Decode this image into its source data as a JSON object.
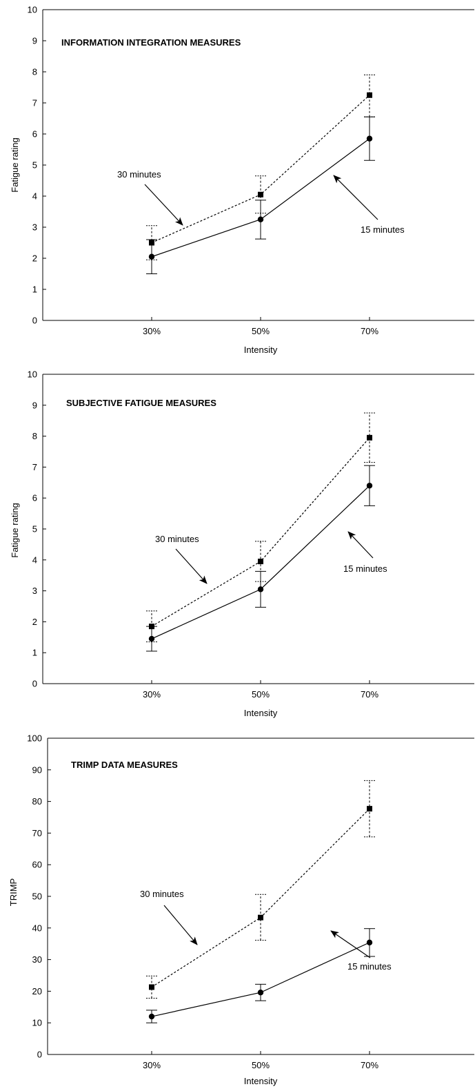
{
  "chart_data": [
    {
      "type": "line",
      "title": "INFORMATION INTEGRATION MEASURES",
      "xlabel": "Intensity",
      "ylabel": "Fatigue rating",
      "categories": [
        "30%",
        "50%",
        "70%"
      ],
      "ylim": [
        0,
        10
      ],
      "yticks": [
        0,
        1,
        2,
        3,
        4,
        5,
        6,
        7,
        8,
        9,
        10
      ],
      "series": [
        {
          "name": "30 minutes",
          "style": "dashed",
          "marker": "square",
          "values": [
            2.5,
            4.05,
            7.25
          ],
          "err_low": [
            1.95,
            3.45,
            6.55
          ],
          "err_high": [
            3.05,
            4.65,
            7.9
          ]
        },
        {
          "name": "15 minutes",
          "style": "solid",
          "marker": "circle",
          "values": [
            2.05,
            3.25,
            5.85
          ],
          "err_low": [
            1.5,
            2.62,
            5.15
          ],
          "err_high": [
            2.6,
            3.87,
            6.55
          ]
        }
      ],
      "annotations": [
        {
          "text": "30 minutes",
          "series": "30 minutes"
        },
        {
          "text": "15 minutes",
          "series": "15 minutes"
        }
      ]
    },
    {
      "type": "line",
      "title": "SUBJECTIVE FATIGUE MEASURES",
      "xlabel": "Intensity",
      "ylabel": "Fatigue rating",
      "categories": [
        "30%",
        "50%",
        "70%"
      ],
      "ylim": [
        0,
        10
      ],
      "yticks": [
        0,
        1,
        2,
        3,
        4,
        5,
        6,
        7,
        8,
        9,
        10
      ],
      "series": [
        {
          "name": "30 minutes",
          "style": "dashed",
          "marker": "square",
          "values": [
            1.85,
            3.95,
            7.95
          ],
          "err_low": [
            1.35,
            3.3,
            7.15
          ],
          "err_high": [
            2.35,
            4.6,
            8.75
          ]
        },
        {
          "name": "15 minutes",
          "style": "solid",
          "marker": "circle",
          "values": [
            1.45,
            3.05,
            6.4
          ],
          "err_low": [
            1.05,
            2.47,
            5.75
          ],
          "err_high": [
            1.85,
            3.63,
            7.05
          ]
        }
      ],
      "annotations": [
        {
          "text": "30 minutes",
          "series": "30 minutes"
        },
        {
          "text": "15 minutes",
          "series": "15 minutes"
        }
      ]
    },
    {
      "type": "line",
      "title": "TRIMP DATA MEASURES",
      "xlabel": "Intensity",
      "ylabel": "TRIMP",
      "categories": [
        "30%",
        "50%",
        "70%"
      ],
      "ylim": [
        0,
        100
      ],
      "yticks": [
        0,
        10,
        20,
        30,
        40,
        50,
        60,
        70,
        80,
        90,
        100
      ],
      "series": [
        {
          "name": "30 minutes",
          "style": "dashed",
          "marker": "square",
          "values": [
            21.3,
            43.3,
            77.7
          ],
          "err_low": [
            17.8,
            36.1,
            68.8
          ],
          "err_high": [
            24.8,
            50.6,
            86.6
          ]
        },
        {
          "name": "15 minutes",
          "style": "solid",
          "marker": "circle",
          "values": [
            12,
            19.6,
            35.4
          ],
          "err_low": [
            10,
            17,
            31
          ],
          "err_high": [
            14,
            22.2,
            39.8
          ]
        }
      ],
      "annotations": [
        {
          "text": "30 minutes",
          "series": "30 minutes"
        },
        {
          "text": "15 minutes",
          "series": "15 minutes"
        }
      ]
    }
  ]
}
